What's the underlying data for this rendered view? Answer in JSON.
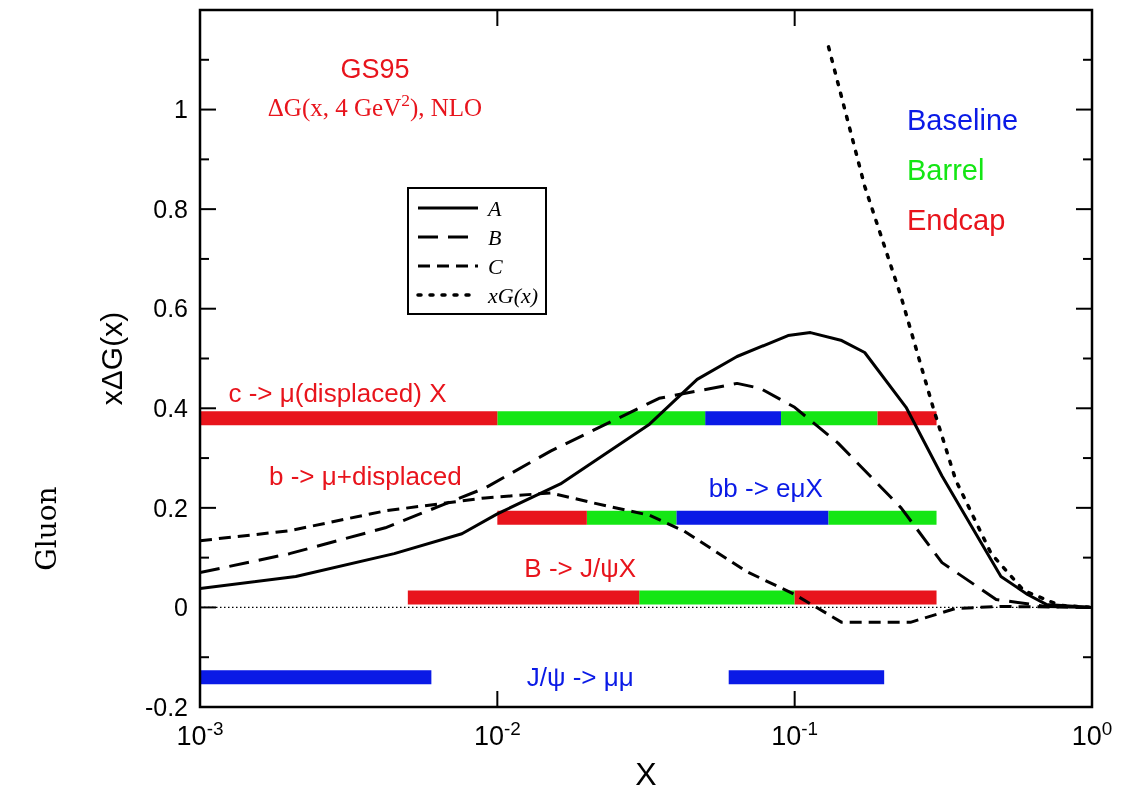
{
  "chart_data": {
    "type": "line",
    "title": "GS95",
    "subtitle": "ΔG(x, 4 GeV$^{2}$), NLO",
    "xlabel": "X",
    "ylabel": "xΔG(x)",
    "log": "x",
    "xlim": [
      0.001,
      1
    ],
    "xticks": [
      {
        "value": 0.001,
        "label": "10$^{-3}$"
      },
      {
        "value": 0.01,
        "label": "10$^{-2}$"
      },
      {
        "value": 0.1,
        "label": "10$^{-1}$"
      },
      {
        "value": 1,
        "label": "10$^{0}$"
      }
    ],
    "ylim": [
      -0.2,
      1.2
    ],
    "yticks": [
      -0.2,
      {
        "value": -0.1,
        "label": null
      },
      0,
      {
        "value": 0.1,
        "label": null
      },
      0.2,
      {
        "value": 0.3,
        "label": null
      },
      0.4,
      {
        "value": 0.5,
        "label": null
      },
      0.6,
      {
        "value": 0.7,
        "label": null
      },
      0.8,
      {
        "value": 0.9,
        "label": null
      },
      1,
      {
        "value": 1.1,
        "label": null
      }
    ],
    "legend": "top left",
    "series": [
      {
        "name": "A",
        "color": "#000000",
        "line_style": "solid",
        "x": [
          0.001,
          0.0021,
          0.0045,
          0.0076,
          0.01,
          0.0163,
          0.0325,
          0.047,
          0.064,
          0.095,
          0.113,
          0.144,
          0.172,
          0.237,
          0.313,
          0.494,
          0.607,
          0.702,
          1
        ],
        "values": [
          0.038,
          0.062,
          0.108,
          0.148,
          0.188,
          0.248,
          0.368,
          0.458,
          0.504,
          0.546,
          0.552,
          0.536,
          0.512,
          0.402,
          0.264,
          0.062,
          0.026,
          0.006,
          0
        ]
      },
      {
        "name": "B",
        "color": "#000000",
        "line_style": "dashed",
        "x": [
          0.001,
          0.002,
          0.0042,
          0.0091,
          0.0151,
          0.035,
          0.064,
          0.0766,
          0.1,
          0.14,
          0.228,
          0.313,
          0.476,
          0.7,
          1
        ],
        "values": [
          0.07,
          0.108,
          0.16,
          0.24,
          0.314,
          0.42,
          0.45,
          0.44,
          0.402,
          0.33,
          0.2,
          0.09,
          0.016,
          0.002,
          0
        ]
      },
      {
        "name": "C",
        "color": "#000000",
        "line_style": "dashed",
        "x": [
          0.001,
          0.002,
          0.0042,
          0.0091,
          0.0151,
          0.021,
          0.0325,
          0.0423,
          0.069,
          0.1,
          0.144,
          0.245,
          0.348,
          0.494,
          1
        ],
        "values": [
          0.134,
          0.154,
          0.194,
          0.22,
          0.23,
          0.21,
          0.185,
          0.154,
          0.072,
          0.026,
          -0.03,
          -0.03,
          -0.002,
          0.002,
          0
        ]
      },
      {
        "name": "xG(x)",
        "color": "#000000",
        "line_style": "dotted",
        "x": [
          0.13,
          0.172,
          0.228,
          0.292,
          0.348,
          0.458,
          0.589,
          0.78,
          1
        ],
        "values": [
          1.126,
          0.846,
          0.624,
          0.402,
          0.256,
          0.108,
          0.034,
          0.004,
          0
        ]
      },
      {
        "name": "Baseline",
        "color": "#0a1ae6",
        "x": [
          0.05,
          0.09,
          null,
          0.04,
          0.13,
          null,
          0.001,
          0.006,
          null,
          0.06,
          0.2
        ],
        "values": [
          0.38,
          0.38,
          null,
          0.18,
          0.18,
          null,
          -0.14,
          -0.14,
          null,
          -0.14,
          -0.14
        ]
      },
      {
        "name": "Barrel",
        "color": "#14e614",
        "x": [
          0.01,
          0.05,
          null,
          0.09,
          0.19,
          null,
          0.02,
          0.04,
          null,
          0.13,
          0.3,
          null,
          0.03,
          0.1
        ],
        "values": [
          0.38,
          0.38,
          null,
          0.38,
          0.38,
          null,
          0.18,
          0.18,
          null,
          0.18,
          0.18,
          null,
          0.02,
          0.02
        ]
      },
      {
        "name": "Endcap",
        "color": "#e8141c",
        "x": [
          0.001,
          0.01,
          null,
          0.19,
          0.3,
          null,
          0.01,
          0.02,
          null,
          0.005,
          0.03,
          null,
          0.1,
          0.3
        ],
        "values": [
          0.38,
          0.38,
          null,
          0.38,
          0.38,
          null,
          0.18,
          0.18,
          null,
          0.02,
          0.02,
          null,
          0.02,
          0.02
        ]
      }
    ],
    "ref_lines": [
      {
        "axis": "y",
        "value": 0,
        "line_style": "dotted",
        "color": "#000000"
      }
    ],
    "annotations": [
      "Gluon",
      "c -> μ(displaced) X",
      "b -> μ+displaced",
      "bb -> eμX",
      "B -> J/ψX",
      "J/ψ -> μμ"
    ]
  }
}
